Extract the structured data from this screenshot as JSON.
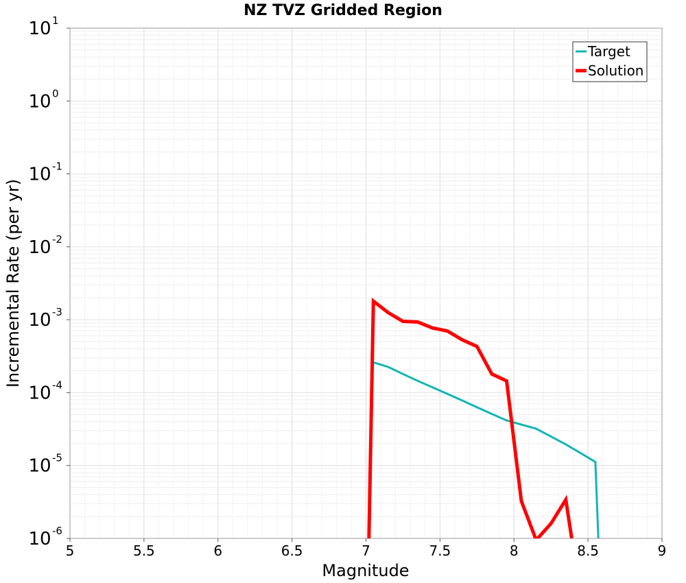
{
  "chart_data": {
    "type": "line",
    "title": "NZ TVZ Gridded Region",
    "xlabel": "Magnitude",
    "ylabel": "Incremental Rate (per yr)",
    "xlim": [
      5,
      9
    ],
    "ylim": [
      1e-06,
      10
    ],
    "yscale": "log",
    "grid": true,
    "legend_position": "top-right",
    "xticks": [
      5,
      5.5,
      6,
      6.5,
      7,
      7.5,
      8,
      8.5,
      9
    ],
    "xtick_labels": [
      "5",
      "5.5",
      "6",
      "6.5",
      "7",
      "7.5",
      "8",
      "8.5",
      "9"
    ],
    "ytick_exponents": [
      "-6",
      "-5",
      "-4",
      "-3",
      "-2",
      "-1",
      "0",
      "1"
    ],
    "ytick_base": "10",
    "series": [
      {
        "name": "Target",
        "color": "#12b5b5",
        "x": [
          7.05,
          7.15,
          7.25,
          7.35,
          7.45,
          7.55,
          7.65,
          7.75,
          7.85,
          7.95,
          8.05,
          8.15,
          8.25,
          8.35,
          8.45,
          8.55,
          8.57
        ],
        "y": [
          0.00026,
          0.000225,
          0.00018,
          0.000145,
          0.000118,
          9.6e-05,
          7.8e-05,
          6.3e-05,
          5.1e-05,
          4.15e-05,
          3.65e-05,
          3.2e-05,
          2.5e-05,
          1.95e-05,
          1.48e-05,
          1.12e-05,
          1e-06
        ]
      },
      {
        "name": "Solution",
        "color": "#ff0000",
        "x": [
          7.02,
          7.05,
          7.15,
          7.25,
          7.35,
          7.45,
          7.55,
          7.65,
          7.75,
          7.85,
          7.95,
          8.05,
          8.15,
          8.25,
          8.35,
          8.39
        ],
        "y": [
          1e-06,
          0.0018,
          0.00125,
          0.00095,
          0.00093,
          0.00077,
          0.0007,
          0.00053,
          0.00043,
          0.00018,
          0.000145,
          3.25e-06,
          9.5e-07,
          1.6e-06,
          3.4e-06,
          1e-06
        ]
      }
    ]
  }
}
